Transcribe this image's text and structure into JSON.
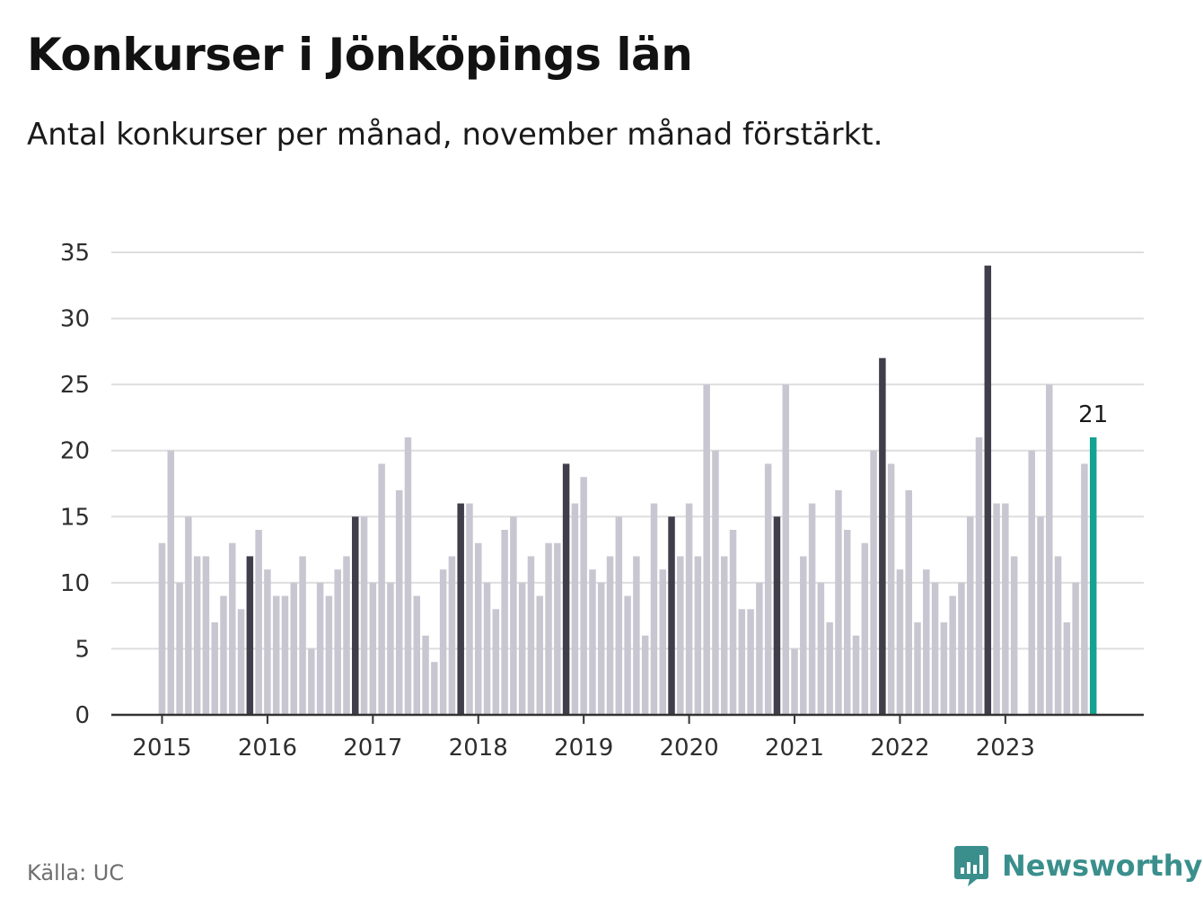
{
  "title": "Konkurser i Jönköpings län",
  "subtitle": "Antal konkurser per månad, november månad förstärkt.",
  "source": "Källa: UC",
  "brand": {
    "name": "Newsworthy",
    "icon": "newsworthy-logo-icon"
  },
  "colors": {
    "normal": "#c8c7d1",
    "november": "#3f3e4a",
    "latest": "#14a291",
    "grid": "#dedede",
    "axis": "#333333"
  },
  "chart_data": {
    "type": "bar",
    "start": "2015-01",
    "values": [
      13,
      20,
      10,
      15,
      12,
      12,
      7,
      9,
      13,
      8,
      12,
      14,
      11,
      9,
      9,
      10,
      12,
      5,
      10,
      9,
      11,
      12,
      15,
      15,
      10,
      19,
      10,
      17,
      21,
      9,
      6,
      4,
      11,
      12,
      16,
      16,
      13,
      10,
      8,
      14,
      15,
      10,
      12,
      9,
      13,
      13,
      19,
      16,
      18,
      11,
      10,
      12,
      15,
      9,
      12,
      6,
      16,
      11,
      15,
      12,
      16,
      12,
      25,
      20,
      12,
      14,
      8,
      8,
      10,
      19,
      15,
      25,
      5,
      12,
      16,
      10,
      7,
      17,
      14,
      6,
      13,
      20,
      27,
      19,
      11,
      17,
      7,
      11,
      10,
      7,
      9,
      10,
      15,
      21,
      34,
      16,
      16,
      12,
      0,
      20,
      15,
      25,
      12,
      7,
      10,
      19,
      21
    ],
    "highlight_month": "november",
    "latest_label": "21",
    "y_ticks": [
      "0",
      "5",
      "10",
      "15",
      "20",
      "25",
      "30",
      "35"
    ],
    "ylim": [
      0,
      35
    ],
    "x_ticks": [
      "2015",
      "2016",
      "2017",
      "2018",
      "2019",
      "2020",
      "2021",
      "2022",
      "2023"
    ],
    "grid": true
  }
}
